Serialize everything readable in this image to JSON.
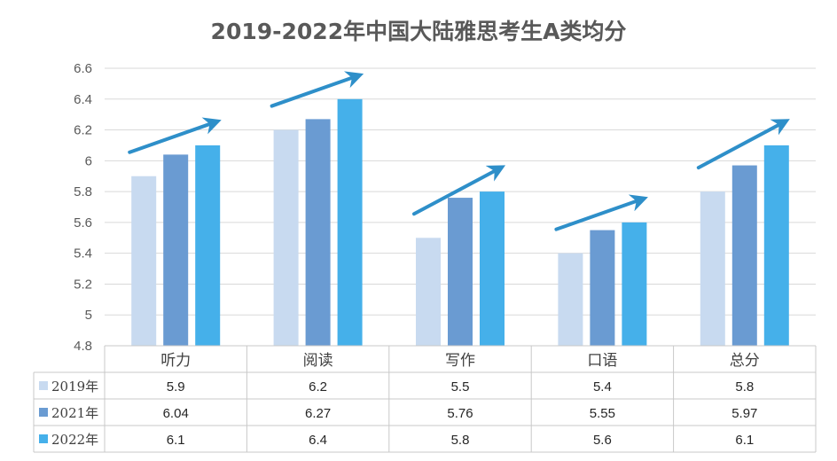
{
  "chart_data": {
    "type": "bar",
    "title": "2019-2022年中国大陆雅思考生A类均分",
    "categories": [
      "听力",
      "阅读",
      "写作",
      "口语",
      "总分"
    ],
    "series": [
      {
        "name": "2019年",
        "values": [
          5.9,
          6.2,
          5.5,
          5.4,
          5.8
        ],
        "color": "#c8daf0"
      },
      {
        "name": "2021年",
        "values": [
          6.04,
          6.27,
          5.76,
          5.55,
          5.97
        ],
        "color": "#6a9bd2"
      },
      {
        "name": "2022年",
        "values": [
          6.1,
          6.4,
          5.8,
          5.6,
          6.1
        ],
        "color": "#45b0ea"
      }
    ],
    "value_labels": [
      [
        "5.9",
        "6.2",
        "5.5",
        "5.4",
        "5.8"
      ],
      [
        "6.04",
        "6.27",
        "5.76",
        "5.55",
        "5.97"
      ],
      [
        "6.1",
        "6.4",
        "5.8",
        "5.6",
        "6.1"
      ]
    ],
    "ylim": [
      4.8,
      6.6
    ],
    "yticks": [
      "4.8",
      "5",
      "5.2",
      "5.4",
      "5.6",
      "5.8",
      "6",
      "6.2",
      "6.4",
      "6.6"
    ],
    "grid": true,
    "legend": "data-table-below",
    "trend_arrow_color": "#2e8fc9"
  }
}
